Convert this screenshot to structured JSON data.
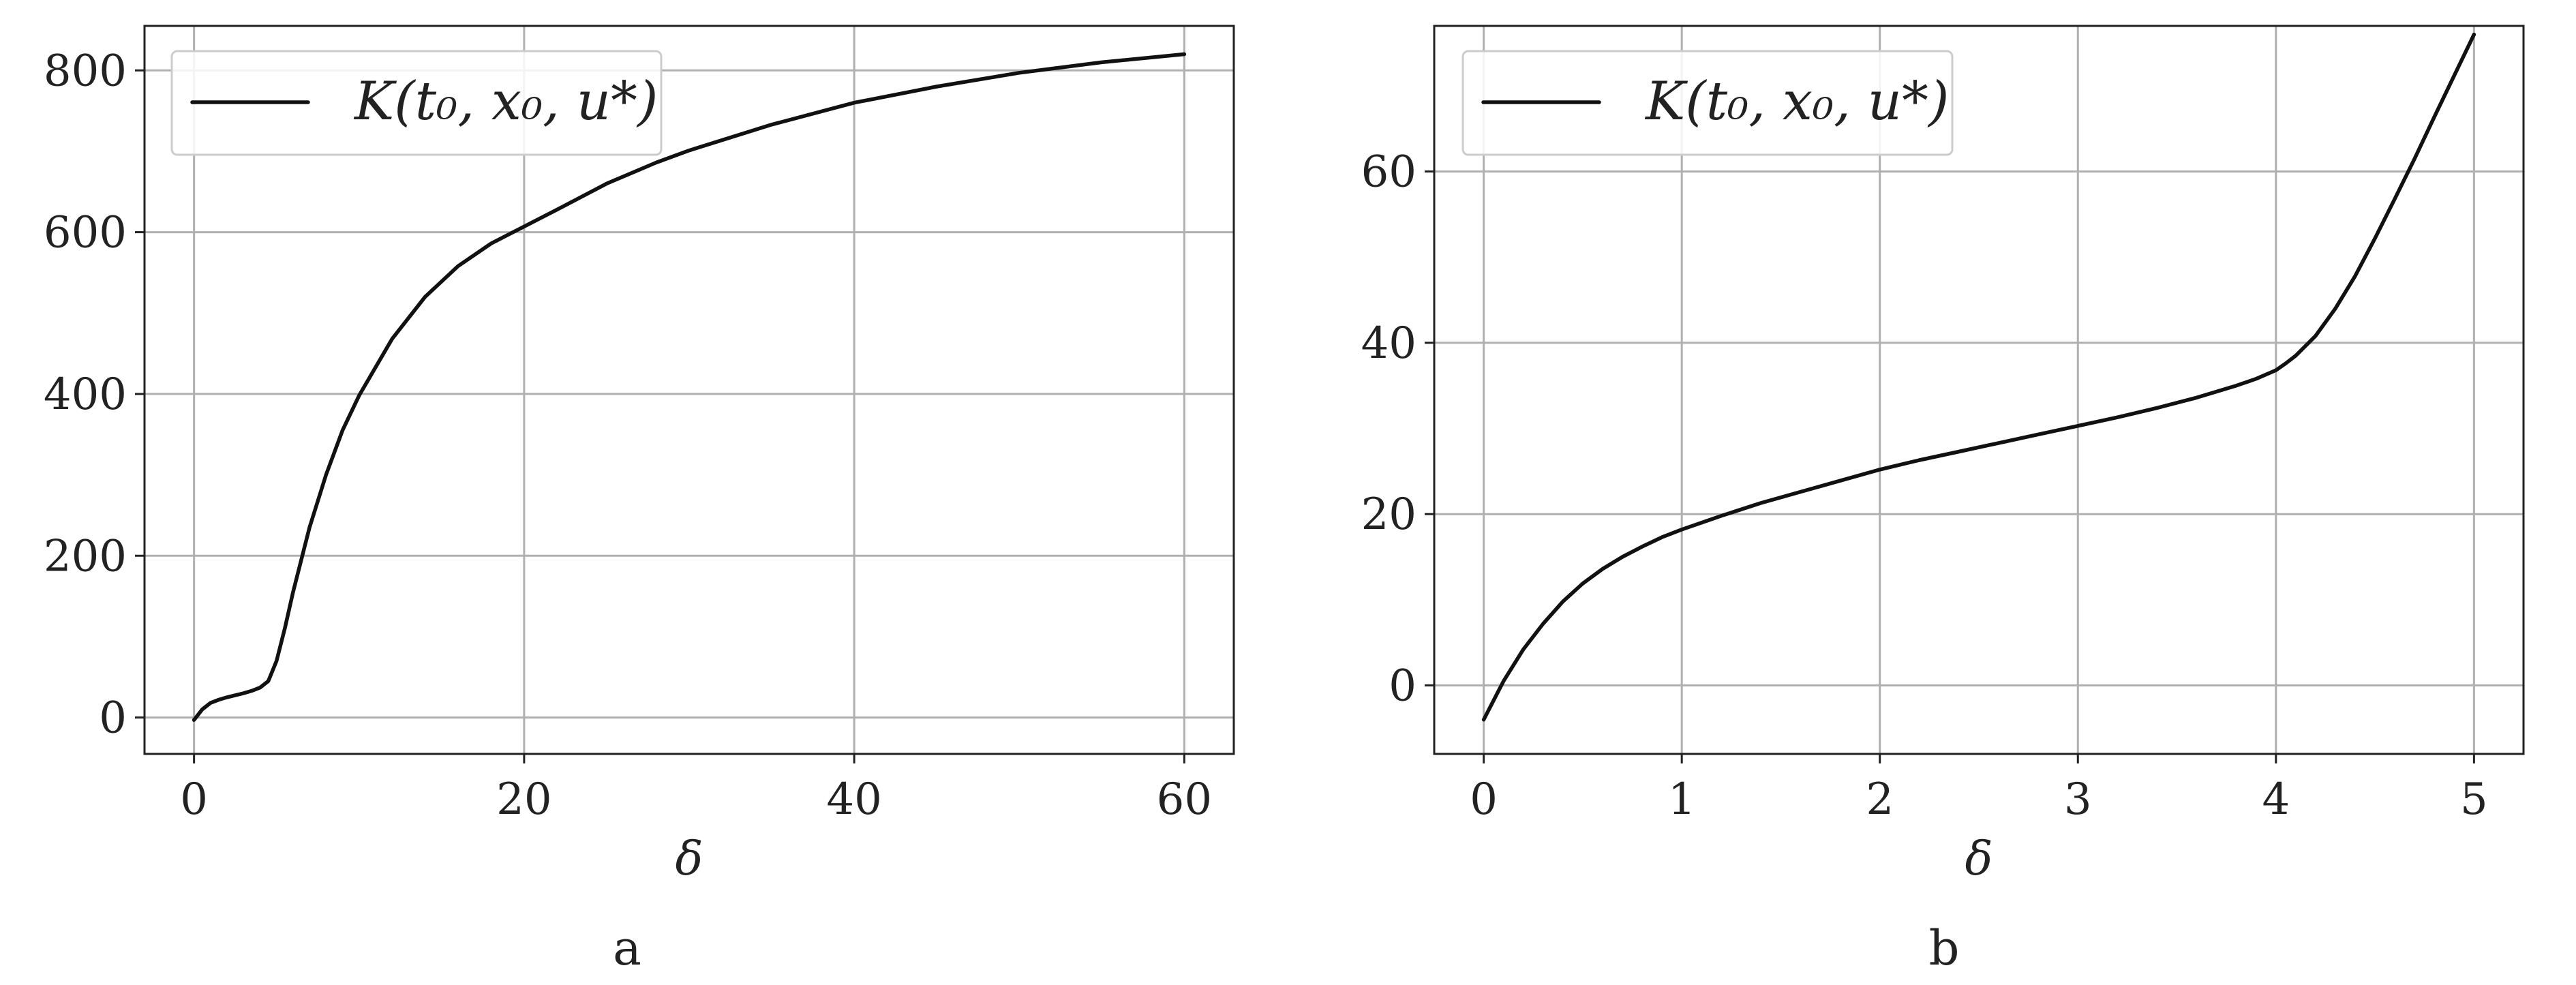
{
  "chart_data": [
    {
      "type": "line",
      "panel_label": "a",
      "xlabel": "δ",
      "ylabel": "",
      "xlim": [
        -3,
        63
      ],
      "ylim": [
        -45,
        855
      ],
      "xticks": [
        0,
        20,
        40,
        60
      ],
      "yticks": [
        0,
        200,
        400,
        600,
        800
      ],
      "grid": true,
      "legend": {
        "position": "top-left",
        "entries": [
          "K(t₀, x₀, u*)"
        ]
      },
      "series": [
        {
          "name": "K(t₀, x₀, u*)",
          "color": "#111111",
          "x": [
            0,
            0.5,
            1,
            1.5,
            2,
            3,
            3.5,
            4,
            4.5,
            5,
            5.5,
            6,
            7,
            8,
            9,
            10,
            12,
            14,
            16,
            18,
            20,
            22,
            25,
            28,
            30,
            35,
            40,
            45,
            50,
            55,
            60
          ],
          "y": [
            -3,
            10,
            18,
            22,
            25,
            30,
            33,
            37,
            45,
            70,
            110,
            155,
            235,
            300,
            355,
            398,
            468,
            520,
            558,
            586,
            607,
            628,
            660,
            686,
            701,
            733,
            760,
            780,
            797,
            810,
            820
          ]
        }
      ]
    },
    {
      "type": "line",
      "panel_label": "b",
      "xlabel": "δ",
      "ylabel": "",
      "xlim": [
        -0.25,
        5.25
      ],
      "ylim": [
        -8,
        77
      ],
      "xticks": [
        0,
        1,
        2,
        3,
        4,
        5
      ],
      "yticks": [
        0,
        20,
        40,
        60
      ],
      "grid": true,
      "legend": {
        "position": "top-left",
        "entries": [
          "K(t₀, x₀, u*)"
        ]
      },
      "series": [
        {
          "name": "K(t₀, x₀, u*)",
          "color": "#111111",
          "x": [
            0,
            0.1,
            0.2,
            0.3,
            0.4,
            0.5,
            0.6,
            0.7,
            0.8,
            0.9,
            1.0,
            1.2,
            1.4,
            1.6,
            1.8,
            2.0,
            2.2,
            2.4,
            2.6,
            2.8,
            3.0,
            3.2,
            3.4,
            3.6,
            3.8,
            3.9,
            4.0,
            4.05,
            4.1,
            4.2,
            4.3,
            4.4,
            4.5,
            4.6,
            4.7,
            4.8,
            4.9,
            5.0
          ],
          "y": [
            -4,
            0.5,
            4.2,
            7.2,
            9.8,
            11.9,
            13.6,
            15,
            16.2,
            17.3,
            18.2,
            19.8,
            21.3,
            22.6,
            23.9,
            25.2,
            26.3,
            27.3,
            28.3,
            29.3,
            30.3,
            31.3,
            32.4,
            33.6,
            35,
            35.8,
            36.8,
            37.6,
            38.5,
            40.8,
            44,
            47.8,
            52.2,
            56.8,
            61.5,
            66.4,
            71.2,
            76
          ]
        }
      ]
    }
  ]
}
